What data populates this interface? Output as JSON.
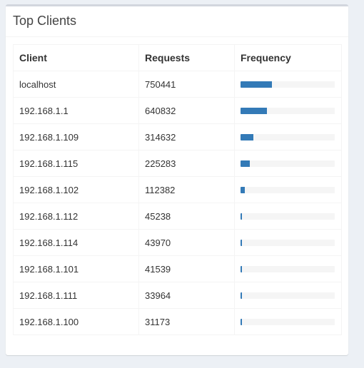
{
  "panel": {
    "title": "Top Clients"
  },
  "table": {
    "headers": [
      "Client",
      "Requests",
      "Frequency"
    ],
    "rows": [
      {
        "client": "localhost",
        "requests": "750441",
        "frequency_fraction": 0.33
      },
      {
        "client": "192.168.1.1",
        "requests": "640832",
        "frequency_fraction": 0.28
      },
      {
        "client": "192.168.1.109",
        "requests": "314632",
        "frequency_fraction": 0.135
      },
      {
        "client": "192.168.1.115",
        "requests": "225283",
        "frequency_fraction": 0.095
      },
      {
        "client": "192.168.1.102",
        "requests": "112382",
        "frequency_fraction": 0.045
      },
      {
        "client": "192.168.1.112",
        "requests": "45238",
        "frequency_fraction": 0.015
      },
      {
        "client": "192.168.1.114",
        "requests": "43970",
        "frequency_fraction": 0.015
      },
      {
        "client": "192.168.1.101",
        "requests": "41539",
        "frequency_fraction": 0.015
      },
      {
        "client": "192.168.1.111",
        "requests": "33964",
        "frequency_fraction": 0.015
      },
      {
        "client": "192.168.1.100",
        "requests": "31173",
        "frequency_fraction": 0.015
      }
    ]
  },
  "colors": {
    "bar": "#337ab7",
    "track": "#f5f5f5",
    "panel_border": "#d2d6de",
    "background": "#ecf0f5"
  }
}
